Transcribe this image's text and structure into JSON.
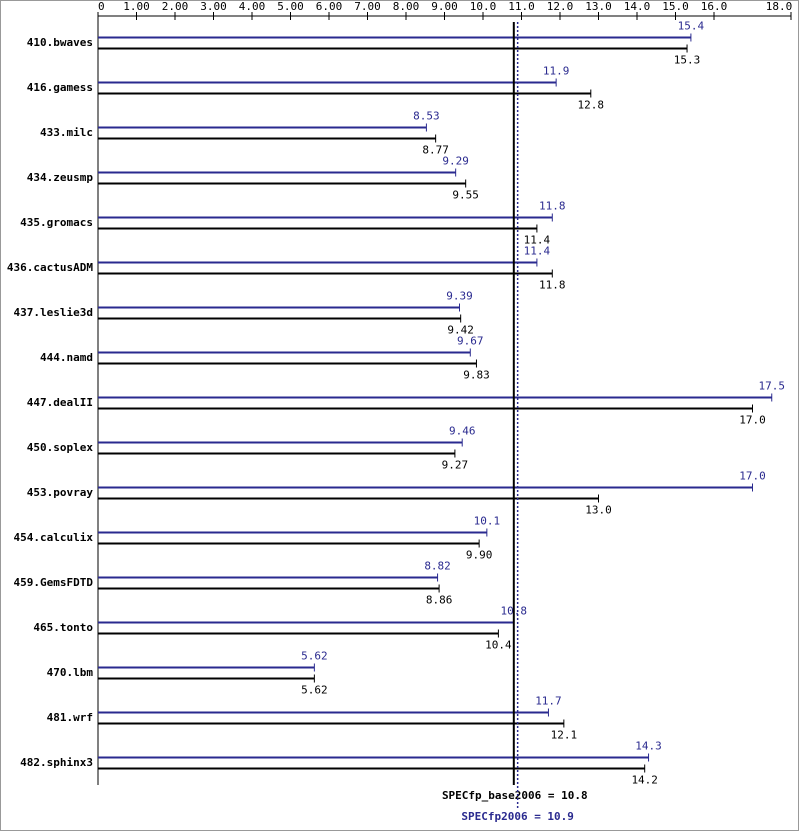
{
  "chart_data": {
    "type": "bar",
    "orientation": "horizontal",
    "categories": [
      "410.bwaves",
      "416.gamess",
      "433.milc",
      "434.zeusmp",
      "435.gromacs",
      "436.cactusADM",
      "437.leslie3d",
      "444.namd",
      "447.dealII",
      "450.soplex",
      "453.povray",
      "454.calculix",
      "459.GemsFDTD",
      "465.tonto",
      "470.lbm",
      "481.wrf",
      "482.sphinx3"
    ],
    "series": [
      {
        "name": "SPECfp2006",
        "color": "#2a2a8f",
        "values": [
          15.4,
          11.9,
          8.53,
          9.29,
          11.8,
          11.4,
          9.39,
          9.67,
          17.5,
          9.46,
          17.0,
          10.1,
          8.82,
          10.8,
          5.62,
          11.7,
          14.3
        ],
        "value_labels": [
          "15.4",
          "11.9",
          "8.53",
          "9.29",
          "11.8",
          "11.4",
          "9.39",
          "9.67",
          "17.5",
          "9.46",
          "17.0",
          "10.1",
          "8.82",
          "10.8",
          "5.62",
          "11.7",
          "14.3"
        ]
      },
      {
        "name": "SPECfp_base2006",
        "color": "#000000",
        "values": [
          15.3,
          12.8,
          8.77,
          9.55,
          11.4,
          11.8,
          9.42,
          9.83,
          17.0,
          9.27,
          13.0,
          9.9,
          8.86,
          10.4,
          5.62,
          12.1,
          14.2
        ],
        "value_labels": [
          "15.3",
          "12.8",
          "8.77",
          "9.55",
          "11.4",
          "11.8",
          "9.42",
          "9.83",
          "17.0",
          "9.27",
          "13.0",
          "9.90",
          "8.86",
          "10.4",
          "5.62",
          "12.1",
          "14.2"
        ]
      }
    ],
    "xlim": [
      0,
      18
    ],
    "xticks": [
      0,
      {
        "value": 1,
        "label": "1.00"
      },
      {
        "value": 2,
        "label": "2.00"
      },
      {
        "value": 3,
        "label": "3.00"
      },
      {
        "value": 4,
        "label": "4.00"
      },
      {
        "value": 5,
        "label": "5.00"
      },
      {
        "value": 6,
        "label": "6.00"
      },
      {
        "value": 7,
        "label": "7.00"
      },
      {
        "value": 8,
        "label": "8.00"
      },
      {
        "value": 9,
        "label": "9.00"
      },
      {
        "value": 10,
        "label": "10.0"
      },
      {
        "value": 11,
        "label": "11.0"
      },
      {
        "value": 12,
        "label": "12.0"
      },
      {
        "value": 13,
        "label": "13.0"
      },
      {
        "value": 14,
        "label": "14.0"
      },
      {
        "value": 15,
        "label": "15.0"
      },
      {
        "value": 16,
        "label": "16.0"
      },
      {
        "value": 18,
        "label": "18.0"
      }
    ],
    "reference_lines": [
      {
        "label": "SPECfp_base2006 = 10.8",
        "value": 10.8,
        "color": "#000000",
        "style": "solid"
      },
      {
        "label": "SPECfp2006 = 10.9",
        "value": 10.9,
        "color": "#2a2a8f",
        "style": "dotted"
      }
    ]
  }
}
